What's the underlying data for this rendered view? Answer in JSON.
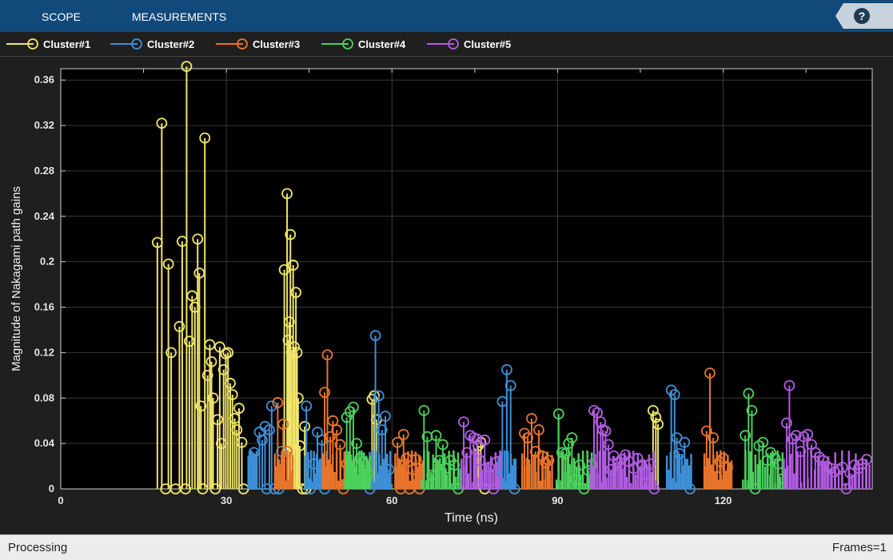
{
  "toolbar": {
    "scope_label": "SCOPE",
    "measurements_label": "MEASUREMENTS",
    "help_label": "?"
  },
  "status": {
    "left": "Processing",
    "right": "Frames=1"
  },
  "colors": {
    "toolbar_bg": "#10497a",
    "plot_bg": "#000000",
    "figure_bg": "#1f1f1f"
  },
  "chart_data": {
    "type": "stem",
    "xlabel": "Time (ns)",
    "ylabel": "Magnitude of Nakagami path gains",
    "xlim": [
      0,
      147
    ],
    "ylim": [
      0,
      0.37
    ],
    "xticks": [
      0,
      30,
      60,
      90,
      120
    ],
    "yticks": [
      0,
      0.04,
      0.08,
      0.12,
      0.16,
      0.2,
      0.24,
      0.28,
      0.32,
      0.36
    ],
    "grid": true,
    "legend_position": "top",
    "series": [
      {
        "name": "Cluster#1",
        "color": "#f0e56a",
        "x": [
          17.5,
          18.3,
          19.0,
          19.5,
          20.0,
          20.8,
          21.5,
          22.0,
          22.6,
          22.8,
          23.3,
          23.8,
          24.3,
          24.8,
          25.1,
          25.4,
          25.7,
          26.1,
          26.6,
          27.0,
          27.3,
          27.6,
          28.0,
          28.4,
          28.8,
          29.1,
          29.5,
          29.9,
          30.3,
          30.7,
          31.1,
          31.5,
          31.9,
          32.3,
          32.8,
          33.1,
          40.5,
          41.0,
          41.2,
          41.4,
          41.6,
          41.8,
          42.1,
          42.3,
          42.6,
          42.8,
          43.0,
          43.3,
          43.8,
          44.2,
          44.4,
          56.4,
          56.8,
          57.2,
          75.6,
          76.1,
          76.8,
          107.3,
          107.8,
          108.2
        ],
        "values": [
          0.217,
          0.322,
          0.0,
          0.198,
          0.12,
          0.0,
          0.143,
          0.218,
          0.0,
          0.372,
          0.13,
          0.17,
          0.16,
          0.22,
          0.19,
          0.073,
          0.0,
          0.309,
          0.1,
          0.127,
          0.112,
          0.08,
          0.0,
          0.061,
          0.125,
          0.04,
          0.105,
          0.119,
          0.12,
          0.093,
          0.083,
          0.062,
          0.052,
          0.071,
          0.041,
          0.0,
          0.193,
          0.26,
          0.131,
          0.147,
          0.224,
          0.12,
          0.197,
          0.125,
          0.173,
          0.12,
          0.08,
          0.038,
          0.0,
          0.055,
          0.0,
          0.079,
          0.082,
          0.061,
          0.038,
          0.041,
          0.0,
          0.069,
          0.063,
          0.057
        ]
      },
      {
        "name": "Cluster#2",
        "color": "#3d8fd6",
        "x": [
          35.0,
          36.0,
          36.5,
          37.0,
          37.3,
          37.8,
          38.2,
          38.7,
          39.5,
          40.0,
          44.5,
          45.2,
          45.8,
          46.5,
          47.3,
          47.8,
          56.0,
          57.0,
          57.6,
          58.2,
          58.8,
          59.5,
          80.0,
          80.8,
          81.5,
          82.2,
          110.6,
          111.2,
          111.6,
          112.1,
          113.0,
          114.0
        ],
        "values": [
          0.032,
          0.05,
          0.043,
          0.055,
          0.0,
          0.052,
          0.073,
          0.0,
          0.0,
          0.033,
          0.073,
          0.0,
          0.022,
          0.05,
          0.043,
          0.0,
          0.0,
          0.135,
          0.082,
          0.052,
          0.064,
          0.017,
          0.077,
          0.105,
          0.091,
          0.0,
          0.087,
          0.083,
          0.045,
          0.031,
          0.041,
          0.0
        ],
        "stems": [
          [
            34,
            35.5,
            16
          ],
          [
            44.3,
            48.2,
            16
          ],
          [
            55.4,
            59.7,
            16
          ],
          [
            79.3,
            82.4,
            12
          ],
          [
            109.8,
            114.2,
            14
          ]
        ]
      },
      {
        "name": "Cluster#3",
        "color": "#e8742c",
        "x": [
          39.3,
          40.3,
          41.0,
          47.8,
          48.3,
          48.8,
          49.3,
          50.0,
          50.6,
          51.2,
          51.8,
          52.3,
          61.0,
          61.6,
          62.1,
          62.6,
          63.2,
          63.8,
          64.4,
          65.0,
          84.0,
          84.6,
          85.3,
          86.0,
          86.6,
          87.2,
          87.8,
          88.4,
          117.0,
          117.6,
          118.2,
          118.8,
          119.4,
          120.0,
          120.8
        ],
        "values": [
          0.076,
          0.057,
          0.033,
          0.085,
          0.118,
          0.046,
          0.06,
          0.052,
          0.039,
          0.0,
          0.022,
          0.017,
          0.041,
          0.0,
          0.048,
          0.027,
          0.0,
          0.017,
          0.026,
          0.0,
          0.049,
          0.045,
          0.062,
          0.033,
          0.052,
          0.029,
          0.023,
          0.025,
          0.051,
          0.102,
          0.045,
          0.011,
          0.024,
          0.027,
          0.019
        ],
        "stems": [
          [
            38.8,
            42.0,
            14
          ],
          [
            47.5,
            52.8,
            16
          ],
          [
            60.6,
            65.6,
            16
          ],
          [
            83.6,
            89.0,
            14
          ],
          [
            116.6,
            121.5,
            16
          ]
        ]
      },
      {
        "name": "Cluster#4",
        "color": "#4cd15c",
        "x": [
          51.8,
          52.4,
          53.0,
          53.6,
          54.2,
          54.8,
          55.6,
          65.8,
          66.4,
          67.2,
          68.0,
          68.6,
          69.2,
          69.8,
          70.6,
          71.3,
          72.0,
          90.2,
          90.8,
          91.4,
          92.0,
          92.6,
          93.2,
          94.0,
          94.8,
          95.6,
          96.2,
          124.0,
          124.6,
          125.2,
          125.8,
          126.5,
          127.2,
          128.0,
          128.6,
          129.4,
          130.0,
          130.8
        ],
        "values": [
          0.063,
          0.068,
          0.072,
          0.04,
          0.027,
          0.024,
          0.013,
          0.069,
          0.046,
          0.012,
          0.047,
          0.025,
          0.039,
          0.018,
          0.025,
          0.021,
          0.0,
          0.066,
          0.032,
          0.031,
          0.04,
          0.045,
          0.008,
          0.021,
          0.0,
          0.016,
          0.021,
          0.047,
          0.084,
          0.069,
          0.0,
          0.038,
          0.041,
          0.025,
          0.032,
          0.027,
          0.022,
          0.009
        ],
        "stems": [
          [
            51.5,
            56.0,
            22
          ],
          [
            65.4,
            72.4,
            18
          ],
          [
            89.8,
            96.6,
            18
          ],
          [
            123.6,
            131.2,
            18
          ]
        ]
      },
      {
        "name": "Cluster#5",
        "color": "#b05ce0",
        "x": [
          73.0,
          73.6,
          74.2,
          74.8,
          75.4,
          76.0,
          76.8,
          77.6,
          78.4,
          79.0,
          96.6,
          97.2,
          97.8,
          98.2,
          98.7,
          99.2,
          99.7,
          100.2,
          100.9,
          101.6,
          102.3,
          103.0,
          103.8,
          104.5,
          105.2,
          106.0,
          106.8,
          107.5,
          131.5,
          132.0,
          132.6,
          133.2,
          134.0,
          134.6,
          135.3,
          136.0,
          136.7,
          137.4,
          138.1,
          138.8,
          139.5,
          140.2,
          140.9,
          141.6,
          142.3,
          143.0,
          143.8,
          144.5,
          145.2,
          146.0
        ],
        "values": [
          0.059,
          0.032,
          0.047,
          0.045,
          0.044,
          0.025,
          0.043,
          0.019,
          0.0,
          0.024,
          0.069,
          0.067,
          0.059,
          0.052,
          0.051,
          0.039,
          0.017,
          0.029,
          0.023,
          0.026,
          0.03,
          0.024,
          0.018,
          0.027,
          0.021,
          0.005,
          0.022,
          0.0,
          0.058,
          0.091,
          0.044,
          0.047,
          0.033,
          0.046,
          0.048,
          0.039,
          0.032,
          0.028,
          0.025,
          0.02,
          0.018,
          0.015,
          0.017,
          0.019,
          0.0,
          0.014,
          0.021,
          0.018,
          0.022,
          0.026
        ],
        "stems": [
          [
            72.6,
            79.6,
            18
          ],
          [
            96.0,
            107.8,
            30
          ],
          [
            131.0,
            146.5,
            26
          ]
        ]
      }
    ]
  }
}
